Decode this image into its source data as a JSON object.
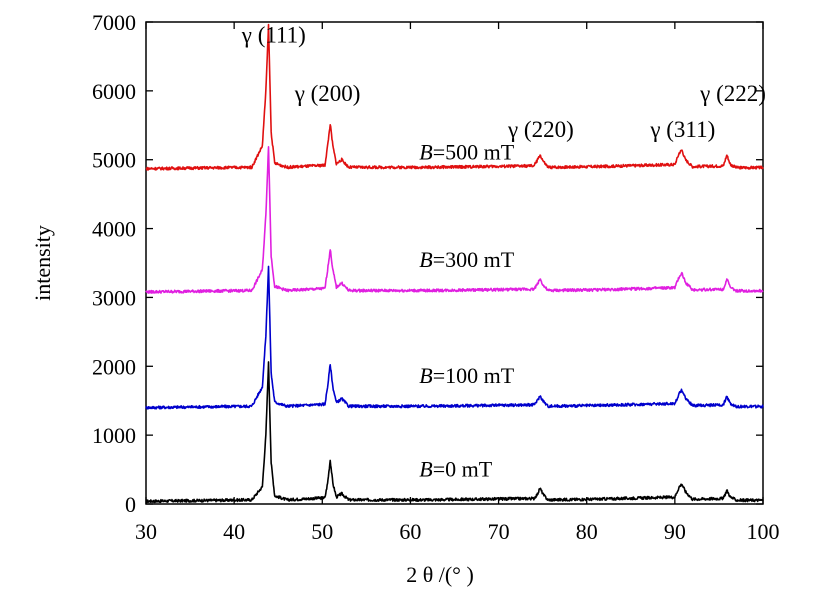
{
  "chart_data": {
    "type": "line",
    "title": "",
    "xlabel": "2 θ /(° )",
    "ylabel": "intensity",
    "xlim": [
      30,
      100
    ],
    "ylim": [
      0,
      7000
    ],
    "xticks": [
      30,
      40,
      50,
      60,
      70,
      80,
      90,
      100
    ],
    "yticks": [
      0,
      1000,
      2000,
      3000,
      4000,
      5000,
      6000,
      7000
    ],
    "grid": false,
    "legend": "none",
    "peak_labels": [
      {
        "text": "γ (111)",
        "x": 44.5,
        "y": 6700
      },
      {
        "text": "γ (200)",
        "x": 50.6,
        "y": 5850
      },
      {
        "text": "γ (220)",
        "x": 74.8,
        "y": 5330
      },
      {
        "text": "γ (311)",
        "x": 90.9,
        "y": 5330
      },
      {
        "text": "γ (222)",
        "x": 96.6,
        "y": 5850
      }
    ],
    "series": [
      {
        "name": "B=0 mT",
        "name_italic": "B",
        "name_rest": "=0 mT",
        "color": "#000000",
        "baseline": 40,
        "label_at": {
          "x": 61.0,
          "y": 400
        },
        "points": [
          [
            30,
            40
          ],
          [
            42,
            60
          ],
          [
            43.2,
            250
          ],
          [
            43.6,
            1000
          ],
          [
            43.9,
            2050
          ],
          [
            44.2,
            600
          ],
          [
            44.6,
            120
          ],
          [
            46,
            60
          ],
          [
            50.3,
            90
          ],
          [
            50.6,
            300
          ],
          [
            50.9,
            640
          ],
          [
            51.2,
            300
          ],
          [
            51.6,
            100
          ],
          [
            52.2,
            150
          ],
          [
            53,
            60
          ],
          [
            62,
            60
          ],
          [
            74,
            80
          ],
          [
            74.4,
            140
          ],
          [
            74.7,
            230
          ],
          [
            75.1,
            130
          ],
          [
            75.6,
            60
          ],
          [
            81,
            70
          ],
          [
            90,
            100
          ],
          [
            90.5,
            250
          ],
          [
            90.8,
            290
          ],
          [
            91.2,
            180
          ],
          [
            92,
            70
          ],
          [
            95.5,
            80
          ],
          [
            95.9,
            200
          ],
          [
            96.3,
            100
          ],
          [
            97,
            55
          ],
          [
            100,
            55
          ]
        ]
      },
      {
        "name": "B=100 mT",
        "name_italic": "B",
        "name_rest": "=100 mT",
        "color": "#0000cc",
        "baseline": 1400,
        "label_at": {
          "x": 61.0,
          "y": 1760
        },
        "points": [
          [
            30,
            1400
          ],
          [
            42,
            1420
          ],
          [
            43.2,
            1700
          ],
          [
            43.6,
            2450
          ],
          [
            43.9,
            3450
          ],
          [
            44.2,
            1900
          ],
          [
            44.6,
            1480
          ],
          [
            46,
            1420
          ],
          [
            50.3,
            1450
          ],
          [
            50.6,
            1700
          ],
          [
            50.9,
            2030
          ],
          [
            51.2,
            1700
          ],
          [
            51.6,
            1470
          ],
          [
            52.2,
            1530
          ],
          [
            53,
            1420
          ],
          [
            62,
            1420
          ],
          [
            74,
            1440
          ],
          [
            74.4,
            1500
          ],
          [
            74.7,
            1570
          ],
          [
            75.1,
            1490
          ],
          [
            75.6,
            1420
          ],
          [
            81,
            1430
          ],
          [
            90,
            1460
          ],
          [
            90.5,
            1600
          ],
          [
            90.8,
            1660
          ],
          [
            91.2,
            1540
          ],
          [
            92,
            1430
          ],
          [
            95.5,
            1440
          ],
          [
            95.9,
            1560
          ],
          [
            96.3,
            1460
          ],
          [
            97,
            1415
          ],
          [
            100,
            1415
          ]
        ]
      },
      {
        "name": "B=300 mT",
        "name_italic": "B",
        "name_rest": "=300 mT",
        "color": "#e020e0",
        "baseline": 3080,
        "label_at": {
          "x": 61.0,
          "y": 3440
        },
        "points": [
          [
            30,
            3080
          ],
          [
            42,
            3100
          ],
          [
            43.2,
            3400
          ],
          [
            43.6,
            4200
          ],
          [
            43.9,
            5200
          ],
          [
            44.2,
            3600
          ],
          [
            44.6,
            3160
          ],
          [
            46,
            3100
          ],
          [
            50.3,
            3130
          ],
          [
            50.6,
            3400
          ],
          [
            50.9,
            3700
          ],
          [
            51.2,
            3400
          ],
          [
            51.6,
            3150
          ],
          [
            52.2,
            3210
          ],
          [
            53,
            3100
          ],
          [
            62,
            3100
          ],
          [
            74,
            3120
          ],
          [
            74.4,
            3190
          ],
          [
            74.7,
            3270
          ],
          [
            75.1,
            3170
          ],
          [
            75.6,
            3100
          ],
          [
            81,
            3110
          ],
          [
            90,
            3140
          ],
          [
            90.5,
            3300
          ],
          [
            90.8,
            3350
          ],
          [
            91.2,
            3220
          ],
          [
            92,
            3110
          ],
          [
            95.5,
            3120
          ],
          [
            95.9,
            3270
          ],
          [
            96.3,
            3140
          ],
          [
            97,
            3095
          ],
          [
            100,
            3095
          ]
        ]
      },
      {
        "name": "B=500 mT",
        "name_italic": "B",
        "name_rest": "=500 mT",
        "color": "#e01010",
        "baseline": 4870,
        "label_at": {
          "x": 61.0,
          "y": 5000
        },
        "points": [
          [
            30,
            4870
          ],
          [
            42,
            4890
          ],
          [
            43.2,
            5200
          ],
          [
            43.6,
            6000
          ],
          [
            43.9,
            6950
          ],
          [
            44.2,
            5400
          ],
          [
            44.6,
            4950
          ],
          [
            46,
            4890
          ],
          [
            50.3,
            4920
          ],
          [
            50.6,
            5200
          ],
          [
            50.9,
            5520
          ],
          [
            51.2,
            5200
          ],
          [
            51.6,
            4940
          ],
          [
            52.2,
            5000
          ],
          [
            53,
            4890
          ],
          [
            62,
            4890
          ],
          [
            74,
            4910
          ],
          [
            74.4,
            4990
          ],
          [
            74.7,
            5070
          ],
          [
            75.1,
            4970
          ],
          [
            75.6,
            4890
          ],
          [
            81,
            4900
          ],
          [
            90,
            4930
          ],
          [
            90.5,
            5100
          ],
          [
            90.8,
            5140
          ],
          [
            91.2,
            5000
          ],
          [
            92,
            4900
          ],
          [
            95.5,
            4910
          ],
          [
            95.9,
            5070
          ],
          [
            96.3,
            4930
          ],
          [
            97,
            4885
          ],
          [
            100,
            4885
          ]
        ]
      }
    ]
  }
}
